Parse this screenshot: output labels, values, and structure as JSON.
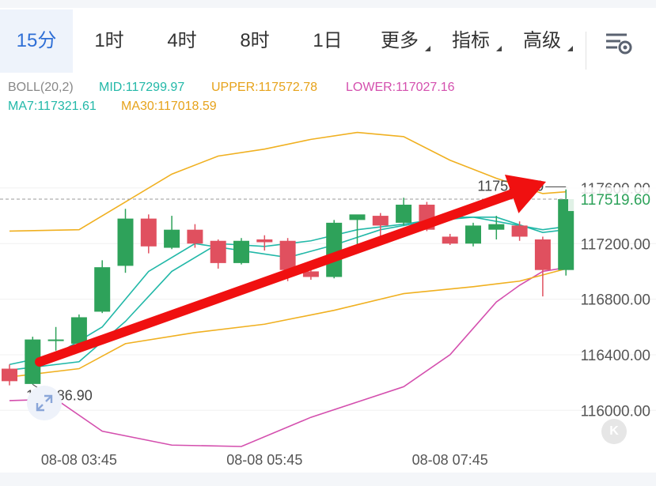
{
  "tabs": [
    {
      "label": "15分",
      "active": true,
      "dropdown": false
    },
    {
      "label": "1时",
      "active": false,
      "dropdown": false
    },
    {
      "label": "4时",
      "active": false,
      "dropdown": false
    },
    {
      "label": "8时",
      "active": false,
      "dropdown": false
    },
    {
      "label": "1日",
      "active": false,
      "dropdown": false
    },
    {
      "label": "更多",
      "active": false,
      "dropdown": true
    },
    {
      "label": "指标",
      "active": false,
      "dropdown": true
    },
    {
      "label": "高级",
      "active": false,
      "dropdown": true
    }
  ],
  "settings_icon": "chart-settings-icon",
  "indicators": {
    "boll": "BOLL(20,2)",
    "mid": "MID:117299.97",
    "upper": "UPPER:117572.78",
    "lower": "LOWER:117027.16",
    "ma7": "MA7:117321.61",
    "ma30": "MA30:117018.59"
  },
  "colors": {
    "up": "#2ea25a",
    "down": "#e0505f",
    "upper": "#f0b020",
    "mid": "#22b8a8",
    "lower": "#d44fae",
    "ma30": "#f0b020",
    "ma7": "#22b8a8",
    "arrow": "#f01010",
    "active_tab": "#2f6fd6"
  },
  "expand_icon": "expand-arrows-icon",
  "logo_icon": "k-logo-icon",
  "chart_data": {
    "type": "candlestick",
    "y_ticks": [
      "117600.00",
      "117200.00",
      "116800.00",
      "116400.00",
      "116000.00"
    ],
    "y_tick_values": [
      117600,
      117200,
      116800,
      116400,
      116000
    ],
    "ylim": [
      115740,
      118100
    ],
    "x_labels": [
      "08-08 03:45",
      "08-08 05:45",
      "08-08 07:45"
    ],
    "x_label_index": [
      3,
      11,
      19
    ],
    "current_price_label": "117519.60",
    "current_price": 117519.6,
    "high_annotation": "117591.80",
    "high_value": 117591.8,
    "low_annotation": "116186.90",
    "low_value": 116186.9,
    "candles": [
      {
        "o": 116300,
        "h": 116330,
        "c": 116210,
        "l": 116180
      },
      {
        "o": 116190,
        "h": 116530,
        "c": 116510,
        "l": 116187
      },
      {
        "o": 116510,
        "h": 116600,
        "c": 116510,
        "l": 116430
      },
      {
        "o": 116480,
        "h": 116690,
        "c": 116670,
        "l": 116420
      },
      {
        "o": 116710,
        "h": 117080,
        "c": 117030,
        "l": 116700
      },
      {
        "o": 117040,
        "h": 117450,
        "c": 117380,
        "l": 116990
      },
      {
        "o": 117380,
        "h": 117410,
        "c": 117180,
        "l": 117130
      },
      {
        "o": 117170,
        "h": 117400,
        "c": 117300,
        "l": 117160
      },
      {
        "o": 117300,
        "h": 117340,
        "c": 117200,
        "l": 117170
      },
      {
        "o": 117220,
        "h": 117230,
        "c": 117060,
        "l": 117020
      },
      {
        "o": 117060,
        "h": 117240,
        "c": 117220,
        "l": 117050
      },
      {
        "o": 117230,
        "h": 117260,
        "c": 117210,
        "l": 117150
      },
      {
        "o": 117220,
        "h": 117240,
        "c": 117010,
        "l": 116930
      },
      {
        "o": 117000,
        "h": 117060,
        "c": 116960,
        "l": 116940
      },
      {
        "o": 116960,
        "h": 117370,
        "c": 117350,
        "l": 116950
      },
      {
        "o": 117370,
        "h": 117400,
        "c": 117410,
        "l": 117180
      },
      {
        "o": 117400,
        "h": 117420,
        "c": 117330,
        "l": 117200
      },
      {
        "o": 117350,
        "h": 117530,
        "c": 117480,
        "l": 117330
      },
      {
        "o": 117480,
        "h": 117500,
        "c": 117300,
        "l": 117290
      },
      {
        "o": 117250,
        "h": 117270,
        "c": 117200,
        "l": 117190
      },
      {
        "o": 117200,
        "h": 117350,
        "c": 117330,
        "l": 117180
      },
      {
        "o": 117300,
        "h": 117400,
        "c": 117340,
        "l": 117230
      },
      {
        "o": 117330,
        "h": 117360,
        "c": 117250,
        "l": 117220
      },
      {
        "o": 117230,
        "h": 117250,
        "c": 117010,
        "l": 116820
      },
      {
        "o": 117010,
        "h": 117590,
        "c": 117520,
        "l": 116970
      }
    ],
    "series": [
      {
        "key": "upper",
        "x": [
          0,
          3,
          5,
          7,
          9,
          11,
          13,
          15,
          17,
          19,
          21,
          23,
          24
        ],
        "y": [
          117290,
          117300,
          117500,
          117700,
          117830,
          117880,
          117950,
          118000,
          117970,
          117800,
          117670,
          117560,
          117573
        ]
      },
      {
        "key": "mid",
        "x": [
          0,
          3,
          5,
          7,
          9,
          11,
          13,
          15,
          17,
          19,
          21,
          23,
          24
        ],
        "y": [
          116290,
          116350,
          116640,
          117000,
          117200,
          117180,
          117220,
          117300,
          117340,
          117390,
          117390,
          117280,
          117300
        ]
      },
      {
        "key": "lower",
        "x": [
          0,
          2,
          4,
          7,
          10,
          13,
          15,
          17,
          19,
          21,
          22,
          23,
          24
        ],
        "y": [
          116070,
          116080,
          115850,
          115750,
          115740,
          115950,
          116060,
          116170,
          116400,
          116780,
          116900,
          117000,
          117027
        ]
      },
      {
        "key": "ma7",
        "x": [
          0,
          2,
          4,
          6,
          8,
          10,
          12,
          14,
          16,
          18,
          20,
          22,
          23,
          24
        ],
        "y": [
          116330,
          116400,
          116600,
          117000,
          117200,
          117150,
          117100,
          117190,
          117300,
          117360,
          117390,
          117330,
          117300,
          117322
        ]
      },
      {
        "key": "ma30",
        "x": [
          0,
          3,
          5,
          8,
          11,
          14,
          17,
          20,
          22,
          24
        ],
        "y": [
          116240,
          116300,
          116480,
          116560,
          116620,
          116720,
          116840,
          116890,
          116930,
          117019
        ]
      }
    ]
  }
}
